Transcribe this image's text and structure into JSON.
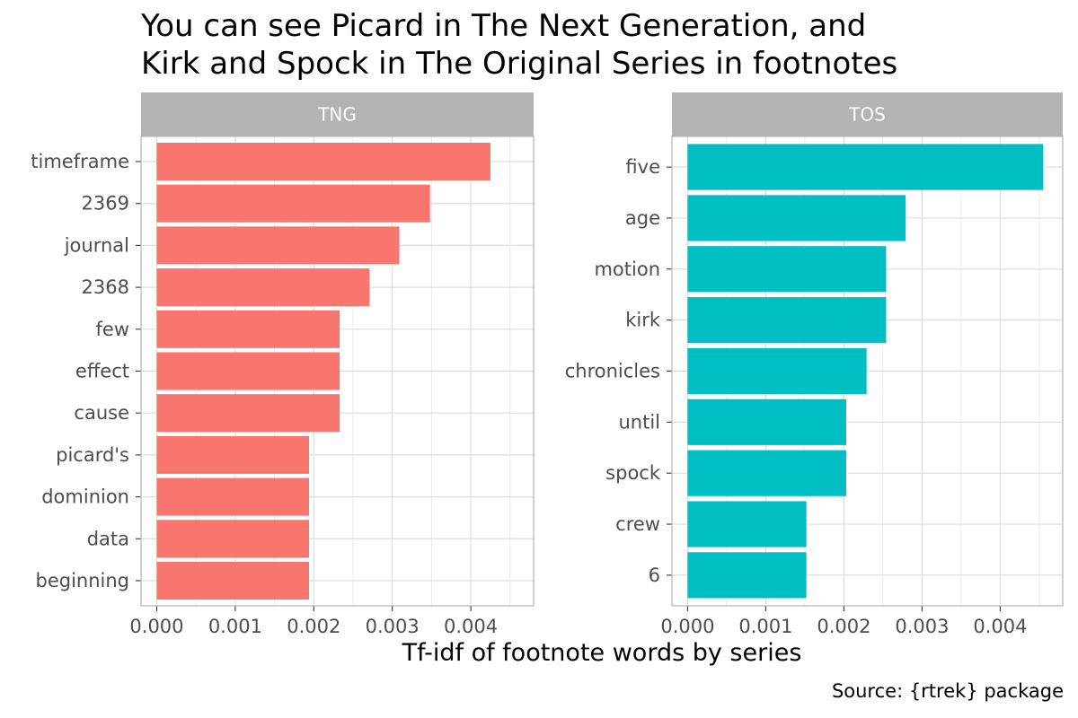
{
  "title_lines": [
    "You can see Picard in The Next Generation, and",
    "Kirk and Spock in The Original Series in footnotes"
  ],
  "xlabel": "Tf-idf of footnote words by series",
  "caption": "Source: {rtrek} package",
  "colors": {
    "TNG": "#F8766D",
    "TOS": "#00BFC4",
    "strip": "#B3B3B3",
    "strip_text": "#FFFFFF",
    "grid": "#DEDEDE",
    "border": "#B3B3B3",
    "tick_text": "#4D4D4D"
  },
  "chart_data": [
    {
      "type": "bar",
      "orientation": "horizontal",
      "facet": "TNG",
      "categories": [
        "timeframe",
        "2369",
        "journal",
        "2368",
        "few",
        "effect",
        "cause",
        "picard's",
        "dominion",
        "data",
        "beginning"
      ],
      "values": [
        0.00425,
        0.00348,
        0.00309,
        0.00271,
        0.00233,
        0.00233,
        0.00233,
        0.00194,
        0.00194,
        0.00194,
        0.00194
      ],
      "xlim": [
        -0.0002,
        0.0048
      ],
      "xticks": [
        "0.000",
        "0.001",
        "0.002",
        "0.003",
        "0.004"
      ],
      "xlabel": "Tf-idf of footnote words by series",
      "grid": true
    },
    {
      "type": "bar",
      "orientation": "horizontal",
      "facet": "TOS",
      "categories": [
        "five",
        "age",
        "motion",
        "kirk",
        "chronicles",
        "until",
        "spock",
        "crew",
        "6"
      ],
      "values": [
        0.00455,
        0.00279,
        0.00254,
        0.00254,
        0.00229,
        0.00203,
        0.00203,
        0.00152,
        0.00152
      ],
      "xlim": [
        -0.0002,
        0.0048
      ],
      "xticks": [
        "0.000",
        "0.001",
        "0.002",
        "0.003",
        "0.004"
      ],
      "xlabel": "Tf-idf of footnote words by series",
      "grid": true
    }
  ]
}
